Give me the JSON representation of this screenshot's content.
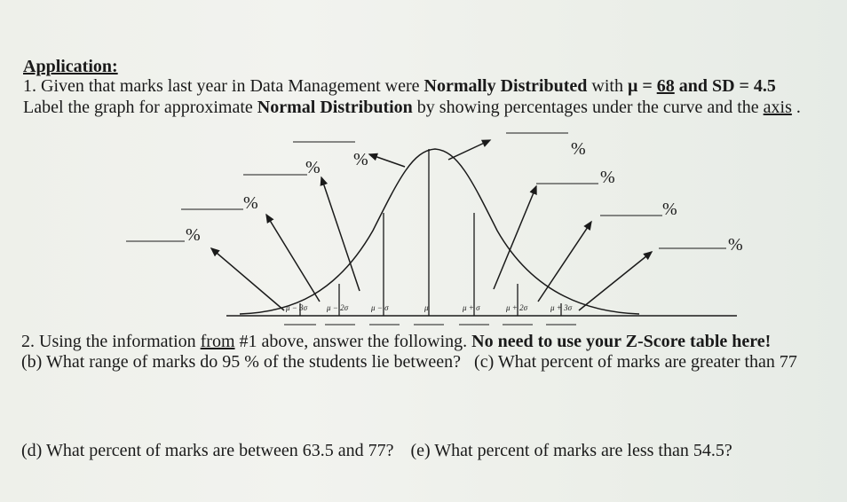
{
  "header": "Application:",
  "q1": {
    "pre": "1. Given that marks last year in Data Management were ",
    "bold": "Normally Distributed",
    "mid": " with ",
    "mu_label": "μ",
    "eq": " = ",
    "mu_value": " 68",
    "post": " and SD = 4.5"
  },
  "q1_line2": {
    "pre": "Label the graph for approximate ",
    "bold": "Normal Distribution",
    "mid": " by showing percentages under the curve and the ",
    "axis": "axis",
    "end": " ."
  },
  "graph": {
    "percent_sign": "%",
    "tick_labels": [
      "μ − 3σ",
      "μ − 2σ",
      "μ − σ",
      "μ",
      "μ + σ",
      "μ + 2σ",
      "μ + 3σ"
    ]
  },
  "q2": {
    "pre": "2. Using the information ",
    "from": "from",
    "ref": " #1 above, answer the following. ",
    "bold": "No need to use your Z-Score table here!"
  },
  "q2b": "(b) What range of marks do 95 % of the students lie between?",
  "q2c": "(c) What percent of marks are greater than 77",
  "q2d": "(d) What percent of marks are between 63.5 and 77?",
  "q2e": "(e) What percent of marks are less than 54.5?"
}
